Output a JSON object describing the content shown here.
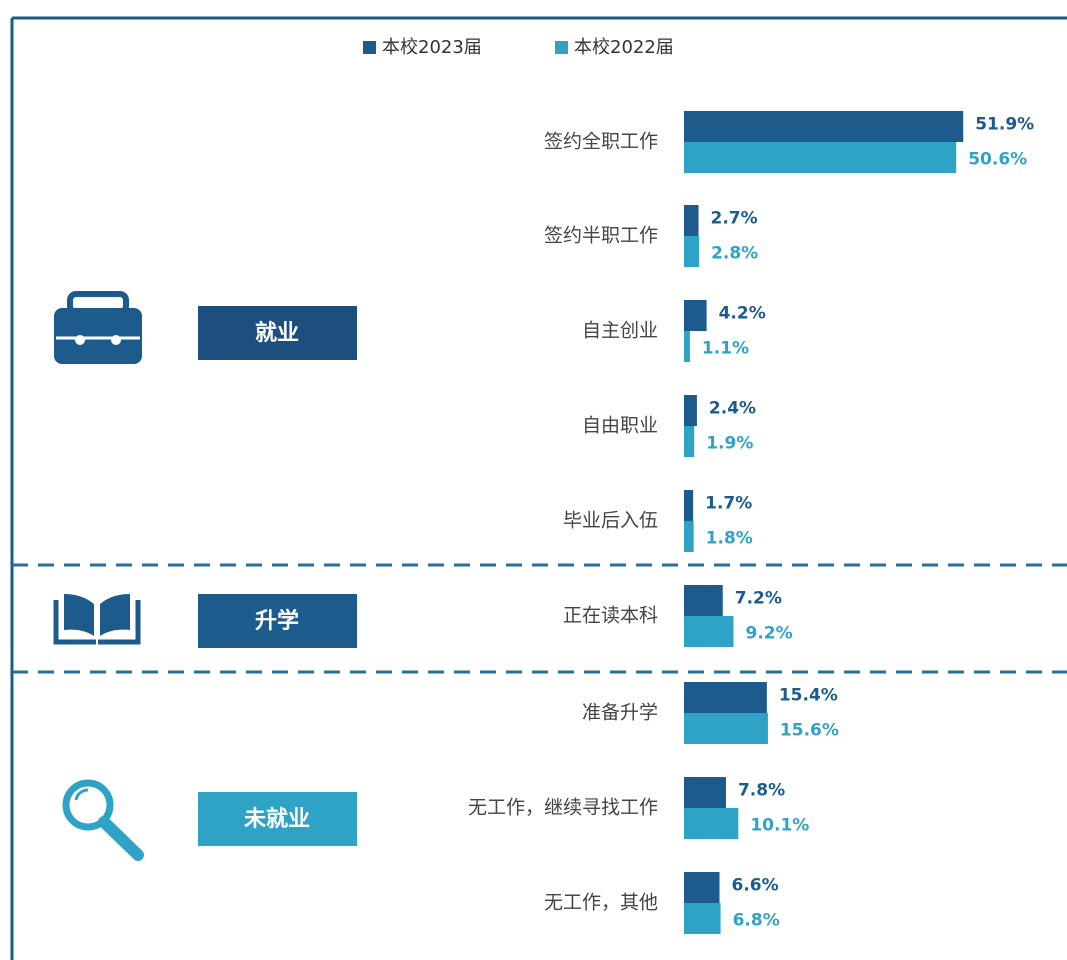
{
  "chart_data": {
    "type": "bar",
    "categories": [
      "签约全职工作",
      "签约半职工作",
      "自主创业",
      "自由职业",
      "毕业后入伍",
      "正在读本科",
      "准备升学",
      "无工作，继续寻找工作",
      "无工作，其他"
    ],
    "series": [
      {
        "name": "本校2023届",
        "color": "#1c5b8c",
        "values": [
          51.9,
          2.7,
          4.2,
          2.4,
          1.7,
          7.2,
          15.4,
          7.8,
          6.6
        ],
        "value_labels": [
          "51.9%",
          "2.7%",
          "4.2%",
          "2.4%",
          "1.7%",
          "7.2%",
          "15.4%",
          "7.8%",
          "6.6%"
        ]
      },
      {
        "name": "本校2022届",
        "color": "#2fa3c6",
        "values": [
          50.6,
          2.8,
          1.1,
          1.9,
          1.8,
          9.2,
          15.6,
          10.1,
          6.8
        ],
        "value_labels": [
          "50.6%",
          "2.8%",
          "1.1%",
          "1.9%",
          "1.8%",
          "9.2%",
          "15.6%",
          "10.1%",
          "6.8%"
        ]
      }
    ],
    "group_labels": [
      "就业",
      "升学",
      "未就业"
    ]
  }
}
